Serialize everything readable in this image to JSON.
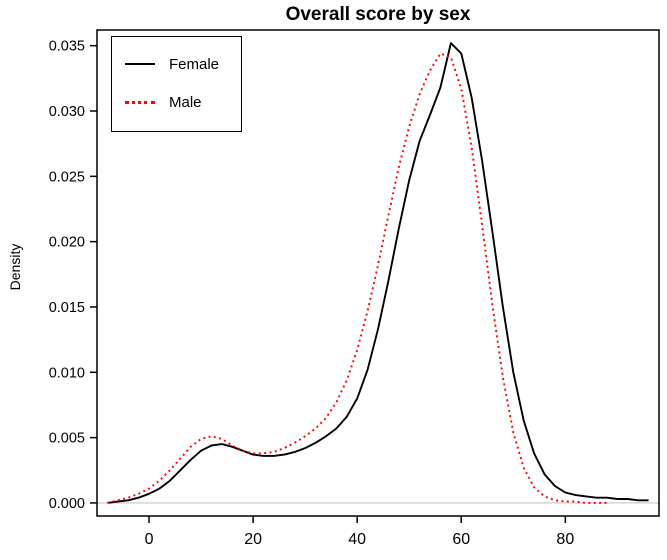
{
  "chart_data": {
    "type": "line",
    "title": "Overall score by sex",
    "xlabel": "",
    "ylabel": "Density",
    "xlim": [
      -10,
      98
    ],
    "ylim": [
      -0.001,
      0.0362
    ],
    "x_ticks": [
      0,
      20,
      40,
      60,
      80
    ],
    "x_tick_labels": [
      "0",
      "20",
      "40",
      "60",
      "80"
    ],
    "y_ticks": [
      0.0,
      0.005,
      0.01,
      0.015,
      0.02,
      0.025,
      0.03,
      0.035
    ],
    "y_tick_labels": [
      "0.000",
      "0.005",
      "0.010",
      "0.015",
      "0.020",
      "0.025",
      "0.030",
      "0.035"
    ],
    "grid": false,
    "zero_line_color": "#d4d4d4",
    "axis_color": "#000000",
    "legend_position": "top-left",
    "series": [
      {
        "name": "Female",
        "color": "#000000",
        "line_style": "solid",
        "x": [
          -8,
          -6,
          -4,
          -2,
          0,
          2,
          4,
          6,
          8,
          10,
          12,
          14,
          16,
          18,
          20,
          22,
          24,
          26,
          28,
          30,
          32,
          34,
          36,
          38,
          40,
          42,
          44,
          46,
          48,
          50,
          52,
          54,
          56,
          58,
          60,
          62,
          64,
          66,
          68,
          70,
          72,
          74,
          76,
          78,
          80,
          82,
          84,
          86,
          88,
          90,
          92,
          94,
          96
        ],
        "y": [
          0.0,
          0.0001,
          0.0002,
          0.0004,
          0.0007,
          0.0011,
          0.0017,
          0.0025,
          0.0033,
          0.004,
          0.0044,
          0.0045,
          0.0043,
          0.004,
          0.0037,
          0.0036,
          0.0036,
          0.0037,
          0.0039,
          0.0042,
          0.0046,
          0.0051,
          0.0057,
          0.0066,
          0.008,
          0.0102,
          0.0133,
          0.017,
          0.021,
          0.0247,
          0.0277,
          0.0297,
          0.0318,
          0.0352,
          0.0344,
          0.031,
          0.0262,
          0.0207,
          0.015,
          0.01,
          0.0063,
          0.0038,
          0.0022,
          0.0013,
          0.0008,
          0.0006,
          0.0005,
          0.0004,
          0.0004,
          0.0003,
          0.0003,
          0.0002,
          0.0002
        ]
      },
      {
        "name": "Male",
        "color": "#ff0000",
        "line_style": "dotted",
        "x": [
          -8,
          -6,
          -4,
          -2,
          0,
          2,
          4,
          6,
          8,
          10,
          12,
          14,
          16,
          18,
          20,
          22,
          24,
          26,
          28,
          30,
          32,
          34,
          36,
          38,
          40,
          42,
          44,
          46,
          48,
          50,
          52,
          54,
          56,
          58,
          60,
          62,
          64,
          66,
          68,
          70,
          72,
          74,
          76,
          78,
          80,
          82,
          84,
          86,
          88
        ],
        "y": [
          0.0,
          0.0002,
          0.0004,
          0.0007,
          0.0011,
          0.0017,
          0.0025,
          0.0034,
          0.0043,
          0.0049,
          0.0051,
          0.0049,
          0.0044,
          0.004,
          0.0038,
          0.0038,
          0.0039,
          0.0042,
          0.0046,
          0.0051,
          0.0057,
          0.0065,
          0.0077,
          0.0094,
          0.0117,
          0.0147,
          0.0182,
          0.022,
          0.0257,
          0.0288,
          0.0313,
          0.0331,
          0.0344,
          0.0341,
          0.0317,
          0.0272,
          0.0213,
          0.0151,
          0.0096,
          0.0054,
          0.0027,
          0.0012,
          0.0005,
          0.0002,
          0.0001,
          0.0001,
          0.0,
          0.0,
          0.0
        ]
      }
    ]
  }
}
